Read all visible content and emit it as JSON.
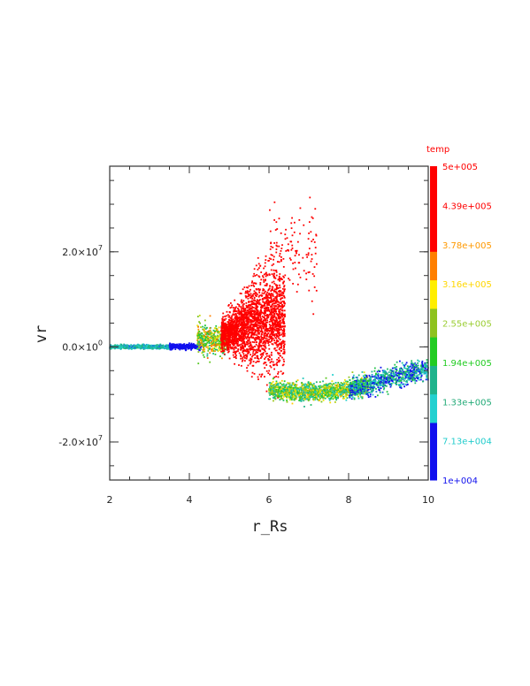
{
  "chart_data": {
    "type": "scatter",
    "title": "",
    "xlabel": "r_Rs",
    "ylabel": "vr",
    "xlim": [
      2,
      10
    ],
    "ylim": [
      -28000000.0,
      38000000.0
    ],
    "x_ticks": [
      {
        "value": 2,
        "label": "2"
      },
      {
        "value": 4,
        "label": "4"
      },
      {
        "value": 6,
        "label": "6"
      },
      {
        "value": 8,
        "label": "8"
      },
      {
        "value": 10,
        "label": "10"
      }
    ],
    "y_ticks": [
      {
        "value": -20000000.0,
        "label": "-2.0×10",
        "exp": "7"
      },
      {
        "value": 0,
        "label": "0.0×10",
        "exp": "0"
      },
      {
        "value": 20000000.0,
        "label": "2.0×10",
        "exp": "7"
      }
    ],
    "grid": false,
    "colorbar": {
      "title": "temp",
      "min": 10000.0,
      "max": 500000.0,
      "tick_labels": [
        "5e+005",
        "4.39e+005",
        "3.78e+005",
        "3.16e+005",
        "2.55e+005",
        "1.94e+005",
        "1.33e+005",
        "7.13e+004",
        "1e+004"
      ],
      "tick_label_colors": [
        "#ff0000",
        "#ff0000",
        "#ff9900",
        "#ffd700",
        "#9acd32",
        "#22cc22",
        "#22aa77",
        "#22cccc",
        "#1111ee"
      ],
      "bands_top_to_bottom": [
        "#ff0000",
        "#ff0000",
        "#ff0000",
        "#ff7f00",
        "#ffee00",
        "#8ec21e",
        "#22cc22",
        "#1fb38c",
        "#22d0d0",
        "#1010ee",
        "#1010ee"
      ]
    },
    "series_description": "Particle scatter of radial velocity vr vs radius r_Rs colored by temperature",
    "series": [
      {
        "x_range": [
          2.0,
          3.6
        ],
        "y_center": 0.0,
        "y_spread": 400000.0,
        "temp_range": [
          0.15,
          0.35
        ],
        "count": 700
      },
      {
        "x_range": [
          3.5,
          4.3
        ],
        "y_center": 100000.0,
        "y_spread": 600000.0,
        "temp_range": [
          0.0,
          0.12
        ],
        "count": 300
      },
      {
        "x_range": [
          4.2,
          5.0
        ],
        "y_center": 1500000.0,
        "y_spread": 3000000.0,
        "temp_range": [
          0.3,
          0.8
        ],
        "count": 500
      },
      {
        "x_range": [
          4.8,
          6.4
        ],
        "y_center": 6000000.0,
        "y_spread": 9000000.0,
        "temp_range": [
          0.85,
          1.0
        ],
        "count": 2400
      },
      {
        "x_range": [
          6.0,
          7.2
        ],
        "y_center": 20000000.0,
        "y_spread": 9000000.0,
        "temp_range": [
          0.95,
          1.0
        ],
        "count": 120
      },
      {
        "x_range": [
          6.0,
          8.5
        ],
        "y_center": -9500000.0,
        "y_spread": 1800000.0,
        "temp_range": [
          0.2,
          0.75
        ],
        "count": 1500
      },
      {
        "x_range": [
          8.0,
          10.0
        ],
        "y_center": -7000000.0,
        "y_spread": 2200000.0,
        "temp_range": [
          0.0,
          0.45
        ],
        "count": 900
      }
    ]
  }
}
